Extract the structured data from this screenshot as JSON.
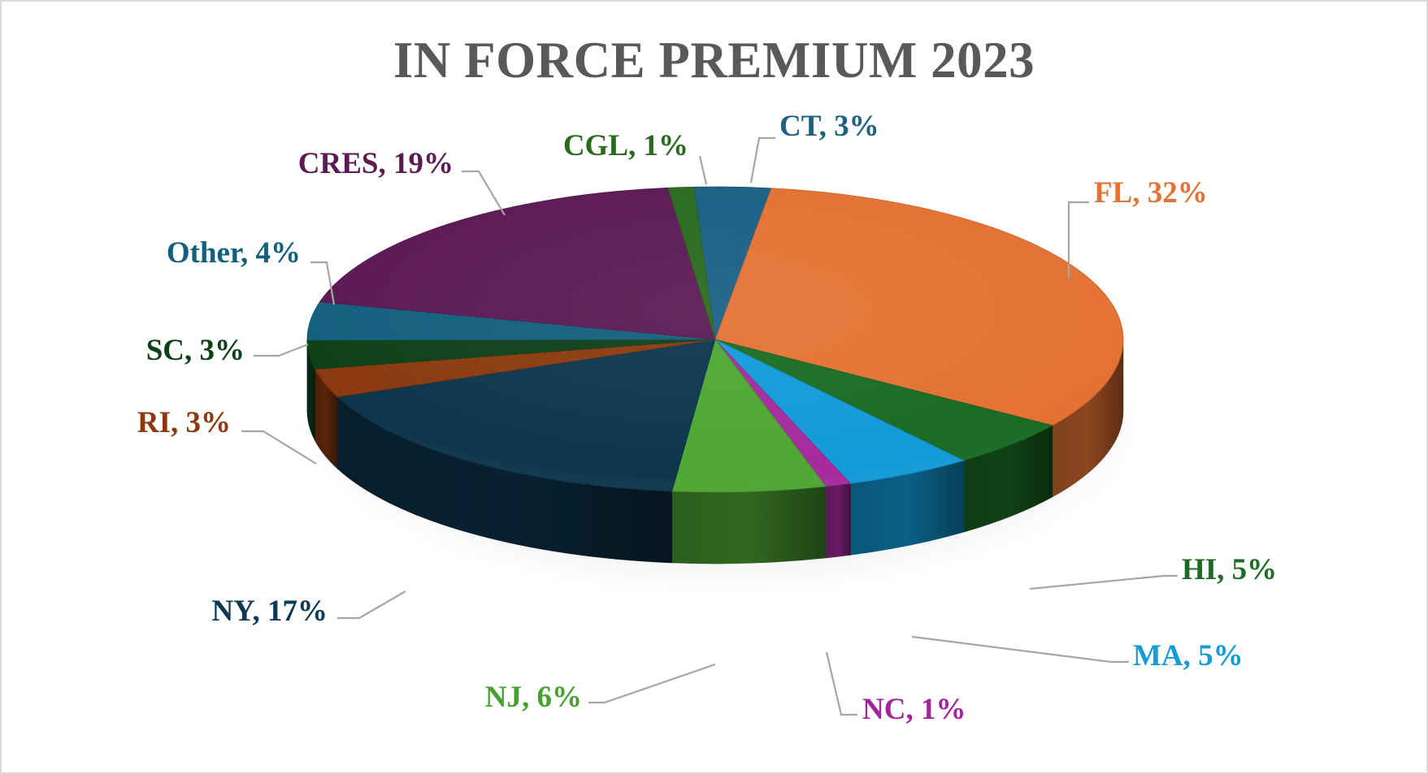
{
  "chart_data": {
    "type": "pie",
    "title": "IN FORCE PREMIUM 2023",
    "slices": [
      {
        "label": "CT",
        "value": 3,
        "color": "#1a5f86",
        "text_color": "#1f5f80"
      },
      {
        "label": "FL",
        "value": 32,
        "color": "#e47233",
        "text_color": "#e47233"
      },
      {
        "label": "HI",
        "value": 5,
        "color": "#1a6b24",
        "text_color": "#1e6b26"
      },
      {
        "label": "MA",
        "value": 5,
        "color": "#129bd8",
        "text_color": "#139cd8"
      },
      {
        "label": "NC",
        "value": 1,
        "color": "#a62b9e",
        "text_color": "#a3259c"
      },
      {
        "label": "NJ",
        "value": 6,
        "color": "#4fa733",
        "text_color": "#48a02e"
      },
      {
        "label": "NY",
        "value": 17,
        "color": "#0d364d",
        "text_color": "#0d3a52"
      },
      {
        "label": "RI",
        "value": 3,
        "color": "#8b3a0f",
        "text_color": "#8b3a0f"
      },
      {
        "label": "SC",
        "value": 3,
        "color": "#0f4119",
        "text_color": "#0f4119"
      },
      {
        "label": "Other",
        "value": 4,
        "color": "#13607e",
        "text_color": "#13607e"
      },
      {
        "label": "CRES",
        "value": 19,
        "color": "#5c1a55",
        "text_color": "#5c1a55"
      },
      {
        "label": "CGL",
        "value": 1,
        "color": "#2a6a1e",
        "text_color": "#2a6a1e"
      }
    ],
    "label_format": "{label}, {value}%",
    "legend": "none",
    "leader_line_color": "#a6a6a6"
  }
}
